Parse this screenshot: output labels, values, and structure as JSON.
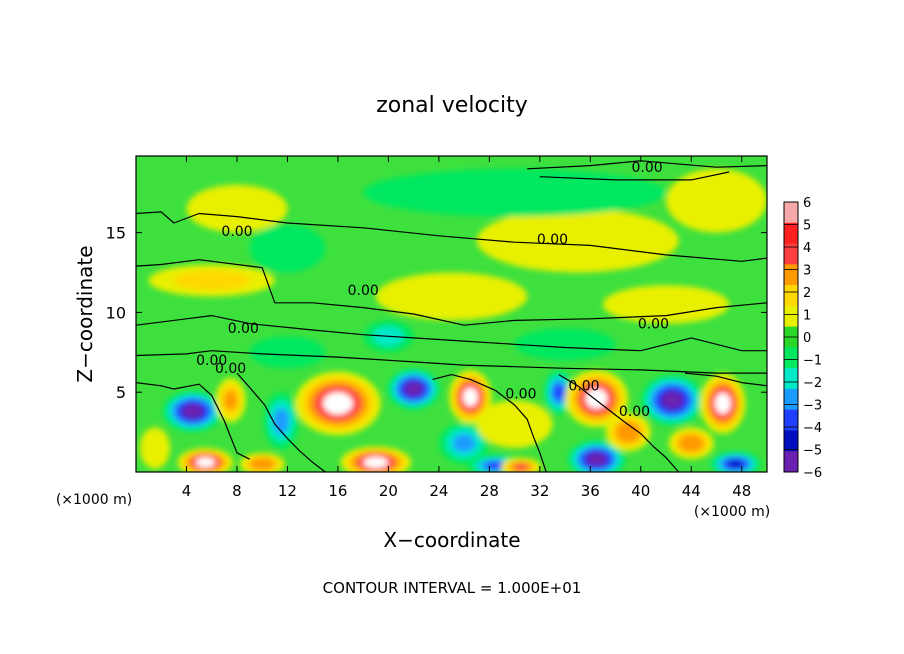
{
  "chart_data": {
    "type": "heatmap",
    "title": "zonal velocity",
    "xlabel": "X−coordinate",
    "ylabel": "Z−coordinate",
    "x_unit_label": "(×1000 m)",
    "x_unit_label_right": "(×1000 m)",
    "xlim": [
      0,
      50
    ],
    "ylim": [
      0,
      19.8
    ],
    "x_ticks": [
      "4",
      "8",
      "12",
      "16",
      "20",
      "24",
      "28",
      "32",
      "36",
      "40",
      "44",
      "48"
    ],
    "x_tick_values": [
      4,
      8,
      12,
      16,
      20,
      24,
      28,
      32,
      36,
      40,
      44,
      48
    ],
    "y_ticks": [
      "5",
      "10",
      "15"
    ],
    "y_tick_values": [
      5,
      10,
      15
    ],
    "colorbar": {
      "ticks": [
        "6",
        "5",
        "4",
        "3",
        "2",
        "1",
        "0",
        "−1",
        "−2",
        "−3",
        "−4",
        "−5",
        "−6"
      ],
      "colors": [
        "#f7a8a8",
        "#ff2020",
        "#ff4040",
        "#ff9a00",
        "#ffd800",
        "#e8f000",
        "#2ad82a",
        "#00e860",
        "#00e8c8",
        "#1a9cff",
        "#2040ff",
        "#0010c0",
        "#6a20b0"
      ]
    },
    "contour_labels": [
      "0.00",
      "0.00",
      "0.00",
      "0.00",
      "0.00",
      "0.00",
      "0.00",
      "0.00",
      "0.00",
      "0.00",
      "0.00"
    ],
    "footer": "CONTOUR INTERVAL = 1.000E+01",
    "blobs": [
      {
        "x": 4.5,
        "z": 3.8,
        "v": -5.5,
        "rx": 2.4,
        "rz": 1.3
      },
      {
        "x": 5.5,
        "z": 0.6,
        "v": 5.5,
        "rx": 2.2,
        "rz": 0.9
      },
      {
        "x": 7.5,
        "z": 4.5,
        "v": 3,
        "rx": 1.2,
        "rz": 1.4
      },
      {
        "x": 10,
        "z": 0.5,
        "v": 3.5,
        "rx": 1.8,
        "rz": 0.7
      },
      {
        "x": 11.5,
        "z": 3.2,
        "v": -3,
        "rx": 1.4,
        "rz": 1.8
      },
      {
        "x": 16,
        "z": 4.3,
        "v": 6,
        "rx": 3.4,
        "rz": 2.0
      },
      {
        "x": 19,
        "z": 0.6,
        "v": 5.5,
        "rx": 2.8,
        "rz": 1.0
      },
      {
        "x": 22,
        "z": 5.2,
        "v": -5.5,
        "rx": 2.1,
        "rz": 1.3
      },
      {
        "x": 26.5,
        "z": 4.7,
        "v": 5.5,
        "rx": 1.7,
        "rz": 1.7
      },
      {
        "x": 26,
        "z": 1.8,
        "v": -2.5,
        "rx": 2.0,
        "rz": 1.3
      },
      {
        "x": 28.5,
        "z": 0.4,
        "v": -4,
        "rx": 2.2,
        "rz": 0.7
      },
      {
        "x": 30.5,
        "z": 0.3,
        "v": 4,
        "rx": 1.6,
        "rz": 0.6
      },
      {
        "x": 33.5,
        "z": 5,
        "v": -4,
        "rx": 1.2,
        "rz": 1.4
      },
      {
        "x": 36.5,
        "z": 4.6,
        "v": 6,
        "rx": 2.5,
        "rz": 1.8
      },
      {
        "x": 36.5,
        "z": 0.8,
        "v": -5.5,
        "rx": 2.3,
        "rz": 1.2
      },
      {
        "x": 39,
        "z": 2.5,
        "v": 3.5,
        "rx": 1.8,
        "rz": 1.2
      },
      {
        "x": 42.5,
        "z": 4.5,
        "v": -5.5,
        "rx": 2.5,
        "rz": 1.6
      },
      {
        "x": 46.5,
        "z": 4.3,
        "v": 5.5,
        "rx": 1.8,
        "rz": 1.9
      },
      {
        "x": 44,
        "z": 1.8,
        "v": 3.5,
        "rx": 1.8,
        "rz": 1.0
      },
      {
        "x": 47.5,
        "z": 0.5,
        "v": -4.5,
        "rx": 2.0,
        "rz": 0.8
      },
      {
        "x": 1.5,
        "z": 1.5,
        "v": 1.5,
        "rx": 1.2,
        "rz": 1.3
      },
      {
        "x": 30,
        "z": 3,
        "v": 1.2,
        "rx": 3.0,
        "rz": 1.5
      },
      {
        "x": 12,
        "z": 7.5,
        "v": -1.2,
        "rx": 3.0,
        "rz": 1.0
      },
      {
        "x": 34,
        "z": 8,
        "v": -1,
        "rx": 4.0,
        "rz": 1.0
      },
      {
        "x": 6,
        "z": 12,
        "v": 1.8,
        "rx": 5.0,
        "rz": 1.0
      },
      {
        "x": 12,
        "z": 14,
        "v": -1.2,
        "rx": 3.0,
        "rz": 1.5
      },
      {
        "x": 25,
        "z": 11,
        "v": 1.2,
        "rx": 6.0,
        "rz": 1.5
      },
      {
        "x": 35,
        "z": 14.5,
        "v": 1.3,
        "rx": 8.0,
        "rz": 2.0
      },
      {
        "x": 30,
        "z": 17.5,
        "v": -0.6,
        "rx": 12.0,
        "rz": 1.5
      },
      {
        "x": 42,
        "z": 10.5,
        "v": 1.4,
        "rx": 5.0,
        "rz": 1.2
      },
      {
        "x": 46,
        "z": 17,
        "v": 1.2,
        "rx": 4.0,
        "rz": 2.0
      },
      {
        "x": 20,
        "z": 8.5,
        "v": -1.5,
        "rx": 2.0,
        "rz": 1.0
      },
      {
        "x": 8,
        "z": 16.5,
        "v": 1.3,
        "rx": 4.0,
        "rz": 1.5
      }
    ]
  }
}
